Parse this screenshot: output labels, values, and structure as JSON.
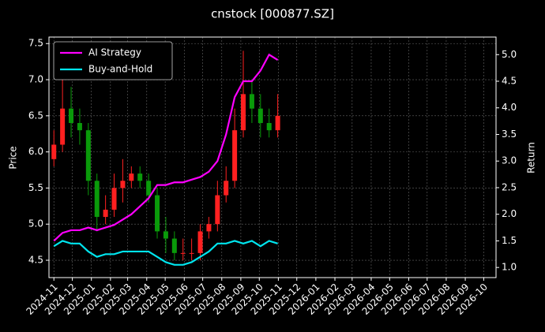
{
  "chart_data": {
    "type": "candlestick",
    "title": "cnstock [000877.SZ]",
    "ylabel": "Price",
    "y2label": "Return",
    "x": [
      "2024-11-01",
      "2024-11-15",
      "2024-11-29",
      "2024-12-13",
      "2024-12-27",
      "2025-01-10",
      "2025-01-24",
      "2025-02-07",
      "2025-02-21",
      "2025-03-07",
      "2025-03-21",
      "2025-04-04",
      "2025-04-18",
      "2025-05-02",
      "2025-05-16",
      "2025-05-30",
      "2025-06-13",
      "2025-06-27",
      "2025-07-11",
      "2025-07-25",
      "2025-08-08",
      "2025-08-22",
      "2025-09-05",
      "2025-09-19",
      "2025-10-03",
      "2025-10-17",
      "2025-10-31"
    ],
    "open": [
      5.9,
      6.1,
      6.6,
      6.4,
      6.3,
      5.6,
      5.1,
      5.2,
      5.5,
      5.6,
      5.7,
      5.6,
      5.4,
      4.9,
      4.8,
      4.6,
      4.6,
      4.6,
      4.9,
      5.0,
      5.4,
      5.6,
      6.3,
      6.8,
      6.6,
      6.4,
      6.3
    ],
    "high": [
      6.3,
      7.0,
      6.9,
      6.6,
      6.4,
      5.7,
      5.4,
      5.7,
      5.9,
      5.8,
      5.8,
      5.7,
      5.5,
      5.1,
      4.9,
      4.8,
      4.8,
      5.0,
      5.1,
      5.6,
      5.8,
      6.6,
      7.4,
      7.0,
      6.8,
      6.6,
      6.8
    ],
    "low": [
      5.8,
      6.0,
      6.2,
      6.1,
      5.4,
      4.9,
      5.0,
      5.1,
      5.3,
      5.5,
      5.5,
      5.3,
      4.8,
      4.6,
      4.5,
      4.5,
      4.5,
      4.5,
      4.8,
      4.9,
      5.3,
      5.5,
      6.2,
      6.4,
      6.2,
      6.2,
      6.2
    ],
    "close": [
      6.1,
      6.6,
      6.4,
      6.3,
      5.6,
      5.1,
      5.2,
      5.5,
      5.6,
      5.7,
      5.6,
      5.4,
      4.9,
      4.8,
      4.6,
      4.6,
      4.6,
      4.9,
      5.0,
      5.4,
      5.6,
      6.3,
      6.8,
      6.6,
      6.4,
      6.3,
      6.5
    ],
    "up_color": "#ff2020",
    "down_color": "#0a9a0a",
    "series": [
      {
        "name": "AI Strategy",
        "color": "#ff00ff",
        "axis": "y2",
        "values": [
          1.5,
          1.65,
          1.7,
          1.7,
          1.75,
          1.7,
          1.75,
          1.8,
          1.9,
          2.0,
          2.15,
          2.3,
          2.55,
          2.55,
          2.6,
          2.6,
          2.65,
          2.7,
          2.8,
          3.0,
          3.5,
          4.2,
          4.5,
          4.5,
          4.7,
          5.0,
          4.9
        ]
      },
      {
        "name": "Buy-and-Hold",
        "color": "#00e5ee",
        "axis": "y2",
        "values": [
          1.4,
          1.5,
          1.45,
          1.45,
          1.3,
          1.2,
          1.25,
          1.25,
          1.3,
          1.3,
          1.3,
          1.3,
          1.2,
          1.1,
          1.05,
          1.05,
          1.1,
          1.2,
          1.3,
          1.45,
          1.45,
          1.5,
          1.45,
          1.5,
          1.4,
          1.5,
          1.45
        ]
      }
    ],
    "xlim": [
      "2024-10-24",
      "2026-10-21"
    ],
    "xticks": [
      {
        "value": "2024-11-01",
        "label": "2024-11"
      },
      {
        "value": "2024-12-01",
        "label": "2024-12"
      },
      {
        "value": "2025-01-01",
        "label": "2025-01"
      },
      {
        "value": "2025-02-01",
        "label": "2025-02"
      },
      {
        "value": "2025-03-01",
        "label": "2025-03"
      },
      {
        "value": "2025-04-01",
        "label": "2025-04"
      },
      {
        "value": "2025-05-01",
        "label": "2025-05"
      },
      {
        "value": "2025-06-01",
        "label": "2025-06"
      },
      {
        "value": "2025-07-01",
        "label": "2025-07"
      },
      {
        "value": "2025-08-01",
        "label": "2025-08"
      },
      {
        "value": "2025-09-01",
        "label": "2025-09"
      },
      {
        "value": "2025-10-01",
        "label": "2025-10"
      },
      {
        "value": "2025-11-01",
        "label": "2025-11"
      },
      {
        "value": "2025-12-01",
        "label": "2025-12"
      },
      {
        "value": "2026-01-01",
        "label": "2026-01"
      },
      {
        "value": "2026-02-01",
        "label": "2026-02"
      },
      {
        "value": "2026-03-01",
        "label": "2026-03"
      },
      {
        "value": "2026-04-01",
        "label": "2026-04"
      },
      {
        "value": "2026-05-01",
        "label": "2026-05"
      },
      {
        "value": "2026-06-01",
        "label": "2026-06"
      },
      {
        "value": "2026-07-01",
        "label": "2026-07"
      },
      {
        "value": "2026-08-01",
        "label": "2026-08"
      },
      {
        "value": "2026-09-01",
        "label": "2026-09"
      },
      {
        "value": "2026-10-01",
        "label": "2026-10"
      }
    ],
    "ylim": [
      4.26,
      7.59
    ],
    "yticks": [
      {
        "value": 4.5,
        "label": "4.5"
      },
      {
        "value": 5.0,
        "label": "5.0"
      },
      {
        "value": 5.5,
        "label": "5.5"
      },
      {
        "value": 6.0,
        "label": "6.0"
      },
      {
        "value": 6.5,
        "label": "6.5"
      },
      {
        "value": 7.0,
        "label": "7.0"
      },
      {
        "value": 7.5,
        "label": "7.5"
      }
    ],
    "y2lim": [
      0.81,
      5.33
    ],
    "y2ticks": [
      {
        "value": 1.0,
        "label": "1.0"
      },
      {
        "value": 1.5,
        "label": "1.5"
      },
      {
        "value": 2.0,
        "label": "2.0"
      },
      {
        "value": 2.5,
        "label": "2.5"
      },
      {
        "value": 3.0,
        "label": "3.0"
      },
      {
        "value": 3.5,
        "label": "3.5"
      },
      {
        "value": 4.0,
        "label": "4.0"
      },
      {
        "value": 4.5,
        "label": "4.5"
      },
      {
        "value": 5.0,
        "label": "5.0"
      }
    ],
    "grid": true,
    "legend": "upper left"
  }
}
